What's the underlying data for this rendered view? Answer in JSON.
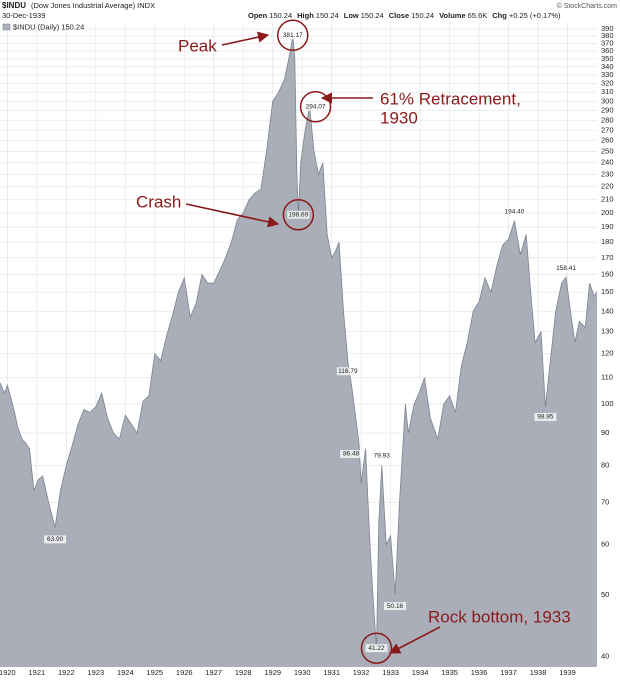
{
  "chart_data": {
    "type": "area",
    "header": {
      "symbol": "$INDU",
      "name": "(Dow Jones Industrial Average) INDX",
      "date": "30-Dec-1939",
      "quote": [
        "Open",
        "150.24",
        "High",
        "150.24",
        "Low",
        "150.24",
        "Close",
        "150.24",
        "Volume",
        "65.6K",
        "Chg",
        "+0.25 (+0.17%)"
      ],
      "credit": "© StockCharts.com"
    },
    "legend": "top-left",
    "series": [
      {
        "name": "$INDU (Daily) 150.24",
        "color": "#a9aeb9",
        "line_color": "#7d8392",
        "x": [
          1919.75,
          1919.9,
          1920.0,
          1920.2,
          1920.35,
          1920.5,
          1920.6,
          1920.75,
          1920.9,
          1921.05,
          1921.2,
          1921.4,
          1921.62,
          1921.8,
          1922.0,
          1922.2,
          1922.4,
          1922.6,
          1922.8,
          1923.0,
          1923.2,
          1923.4,
          1923.6,
          1923.8,
          1924.0,
          1924.2,
          1924.4,
          1924.6,
          1924.8,
          1925.0,
          1925.2,
          1925.4,
          1925.6,
          1925.8,
          1926.0,
          1926.2,
          1926.4,
          1926.6,
          1926.8,
          1927.0,
          1927.2,
          1927.4,
          1927.6,
          1927.8,
          1928.0,
          1928.2,
          1928.4,
          1928.6,
          1928.8,
          1929.0,
          1929.2,
          1929.4,
          1929.6,
          1929.68,
          1929.75,
          1929.82,
          1929.87,
          1929.95,
          1930.1,
          1930.25,
          1930.4,
          1930.55,
          1930.7,
          1930.85,
          1931.0,
          1931.15,
          1931.25,
          1931.4,
          1931.55,
          1931.7,
          1931.93,
          1932.0,
          1932.15,
          1932.3,
          1932.4,
          1932.52,
          1932.6,
          1932.7,
          1932.85,
          1933.0,
          1933.15,
          1933.3,
          1933.5,
          1933.6,
          1933.8,
          1934.0,
          1934.15,
          1934.35,
          1934.6,
          1934.8,
          1935.0,
          1935.2,
          1935.4,
          1935.6,
          1935.8,
          1936.0,
          1936.2,
          1936.4,
          1936.6,
          1936.8,
          1937.0,
          1937.2,
          1937.4,
          1937.6,
          1937.75,
          1937.9,
          1938.1,
          1938.25,
          1938.4,
          1938.6,
          1938.8,
          1938.95,
          1939.1,
          1939.25,
          1939.4,
          1939.6,
          1939.75,
          1939.9,
          1940.0
        ],
        "values": [
          108,
          104,
          107,
          99,
          92,
          88,
          87,
          85,
          73,
          76,
          77,
          70,
          63.9,
          73,
          80,
          86,
          93,
          98,
          97,
          99,
          104,
          95,
          90,
          88,
          96,
          93,
          90,
          101,
          103,
          120,
          117,
          128,
          138,
          150,
          158,
          137,
          144,
          160,
          155,
          155,
          162,
          170,
          180,
          195,
          200,
          210,
          215,
          218,
          252,
          300,
          310,
          325,
          360,
          381.17,
          350,
          230,
          198.69,
          240,
          270,
          294.07,
          250,
          230,
          240,
          185,
          170,
          175,
          180,
          140,
          116.79,
          105,
          86.48,
          75,
          85,
          60,
          50,
          41.22,
          65,
          79.93,
          60,
          62,
          50.16,
          70,
          100,
          90,
          100,
          105,
          110,
          95,
          88,
          100,
          103,
          97,
          115,
          125,
          140,
          145,
          158,
          150,
          165,
          178,
          182,
          194.4,
          172,
          185,
          150,
          125,
          130,
          98.95,
          115,
          140,
          155,
          158.41,
          140,
          125,
          135,
          132,
          155,
          148,
          150.24
        ]
      }
    ],
    "marked_points": {
      "x": [
        1921.62,
        1929.68,
        1930.25,
        1929.87,
        1931.55,
        1931.93,
        1932.7,
        1932.52,
        1933.15,
        1937.2,
        1938.25,
        1938.95
      ],
      "values": [
        63.9,
        381.17,
        294.07,
        198.69,
        116.79,
        86.48,
        79.93,
        41.22,
        50.16,
        194.4,
        98.95,
        158.41
      ],
      "value_labels": [
        "63.90",
        "381.17",
        "294.07",
        "198.69",
        "116.79",
        "86.48",
        "79.93",
        "41.22",
        "50.16",
        "194.40",
        "98.95",
        "158.41"
      ]
    },
    "callouts": [
      [
        "Peak"
      ],
      [
        "61% Retracement,",
        "1930"
      ],
      [
        "Crash"
      ],
      [
        "Rock bottom, 1933"
      ]
    ],
    "xlim": [
      1919.75,
      1940.0
    ],
    "xticks": [
      1920,
      1921,
      1922,
      1923,
      1924,
      1925,
      1926,
      1927,
      1928,
      1929,
      1930,
      1931,
      1932,
      1933,
      1934,
      1935,
      1936,
      1937,
      1938,
      1939
    ],
    "ylim": [
      38.5,
      400
    ],
    "yticks": [
      40,
      50,
      60,
      70,
      80,
      90,
      100,
      110,
      120,
      130,
      140,
      150,
      160,
      170,
      180,
      190,
      200,
      210,
      220,
      230,
      240,
      250,
      260,
      270,
      280,
      290,
      300,
      310,
      320,
      330,
      340,
      350,
      360,
      370,
      380,
      390
    ],
    "log_scale": true,
    "grid": true
  }
}
